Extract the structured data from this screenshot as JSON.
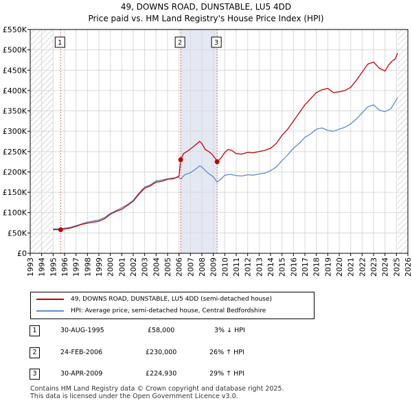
{
  "title": "49, DOWNS ROAD, DUNSTABLE, LU5 4DD",
  "subtitle": "Price paid vs. HM Land Registry's House Price Index (HPI)",
  "colors": {
    "price_line": "#c00000",
    "hpi_line": "#5b8bc9",
    "grid": "#d9d9d9",
    "marker_line": "#e06666",
    "hatch": "#b0b0b0",
    "shade": "#e4e8f3"
  },
  "chart_data": {
    "type": "line",
    "title": "49, DOWNS ROAD, DUNSTABLE, LU5 4DD",
    "subtitle": "Price paid vs. HM Land Registry's House Price Index (HPI)",
    "xlabel": "",
    "ylabel": "",
    "xlim": [
      1993,
      2026
    ],
    "ylim": [
      0,
      550000
    ],
    "grid": true,
    "y_ticks": [
      0,
      50000,
      100000,
      150000,
      200000,
      250000,
      300000,
      350000,
      400000,
      450000,
      500000,
      550000
    ],
    "y_tick_labels": [
      "£0",
      "£50K",
      "£100K",
      "£150K",
      "£200K",
      "£250K",
      "£300K",
      "£350K",
      "£400K",
      "£450K",
      "£500K",
      "£550K"
    ],
    "x_ticks": [
      1993,
      1994,
      1995,
      1996,
      1997,
      1998,
      1999,
      2000,
      2001,
      2002,
      2003,
      2004,
      2005,
      2006,
      2007,
      2008,
      2009,
      2010,
      2011,
      2012,
      2013,
      2014,
      2015,
      2016,
      2017,
      2018,
      2019,
      2020,
      2021,
      2022,
      2023,
      2024,
      2025,
      2026
    ],
    "x_tick_labels": [
      "1993",
      "1994",
      "1995",
      "1996",
      "1997",
      "1998",
      "1999",
      "2000",
      "2001",
      "2002",
      "2003",
      "2004",
      "2005",
      "2006",
      "2007",
      "2008",
      "2009",
      "2010",
      "2011",
      "2012",
      "2013",
      "2014",
      "2015",
      "2016",
      "2017",
      "2018",
      "2019",
      "2020",
      "2021",
      "2022",
      "2023",
      "2024",
      "2025",
      "2026"
    ],
    "hatched_regions": [
      [
        1993,
        1995.0
      ],
      [
        2025.1,
        2026
      ]
    ],
    "shaded_regions": [
      [
        2006.15,
        2009.33
      ]
    ],
    "legend_position": "below",
    "series": [
      {
        "name": "49, DOWNS ROAD, DUNSTABLE, LU5 4DD (semi-detached house)",
        "color": "#c00000",
        "x": [
          1995.0,
          1995.66,
          1996.5,
          1997.0,
          1997.5,
          1998.0,
          1999.0,
          1999.5,
          2000.0,
          2000.5,
          2001.0,
          2001.5,
          2002.0,
          2002.5,
          2003.0,
          2003.5,
          2004.0,
          2004.5,
          2005.0,
          2005.5,
          2006.0,
          2006.15,
          2006.4,
          2006.8,
          2007.3,
          2007.8,
          2008.0,
          2008.3,
          2008.6,
          2008.9,
          2009.2,
          2009.33,
          2009.7,
          2010.0,
          2010.3,
          2010.6,
          2011.0,
          2011.5,
          2012.0,
          2012.5,
          2013.0,
          2013.5,
          2014.0,
          2014.5,
          2015.0,
          2015.5,
          2016.0,
          2016.5,
          2017.0,
          2017.5,
          2018.0,
          2018.5,
          2019.0,
          2019.5,
          2020.0,
          2020.5,
          2021.0,
          2021.5,
          2022.0,
          2022.5,
          2023.0,
          2023.5,
          2024.0,
          2024.3,
          2024.6,
          2024.9,
          2025.1
        ],
        "values": [
          58000,
          58000,
          62000,
          66000,
          71000,
          74000,
          79000,
          85000,
          96000,
          103000,
          108000,
          118000,
          128000,
          145000,
          160000,
          166000,
          175000,
          177000,
          182000,
          183000,
          190000,
          230000,
          245000,
          252000,
          263000,
          275000,
          270000,
          255000,
          250000,
          243000,
          232000,
          224930,
          235000,
          248000,
          255000,
          253000,
          245000,
          244000,
          248000,
          247000,
          250000,
          253000,
          258000,
          270000,
          290000,
          305000,
          325000,
          345000,
          365000,
          380000,
          395000,
          402000,
          405000,
          395000,
          397000,
          400000,
          408000,
          425000,
          445000,
          465000,
          470000,
          455000,
          448000,
          462000,
          472000,
          478000,
          492000
        ]
      },
      {
        "name": "HPI: Average price, semi-detached house, Central Bedfordshire",
        "color": "#5b8bc9",
        "x": [
          1995.0,
          1995.66,
          1996.5,
          1997.0,
          1997.5,
          1998.0,
          1999.0,
          1999.5,
          2000.0,
          2000.5,
          2001.0,
          2001.5,
          2002.0,
          2002.5,
          2003.0,
          2003.5,
          2004.0,
          2004.5,
          2005.0,
          2005.5,
          2006.0,
          2006.15,
          2006.5,
          2007.0,
          2007.5,
          2007.8,
          2008.0,
          2008.5,
          2009.0,
          2009.33,
          2009.7,
          2010.0,
          2010.5,
          2011.0,
          2011.5,
          2012.0,
          2012.5,
          2013.0,
          2013.5,
          2014.0,
          2014.5,
          2015.0,
          2015.5,
          2016.0,
          2016.5,
          2017.0,
          2017.5,
          2018.0,
          2018.5,
          2019.0,
          2019.5,
          2020.0,
          2020.5,
          2021.0,
          2021.5,
          2022.0,
          2022.5,
          2023.0,
          2023.5,
          2024.0,
          2024.5,
          2025.1
        ],
        "values": [
          60000,
          60000,
          64000,
          68000,
          72000,
          77000,
          82000,
          88000,
          98000,
          105000,
          112000,
          120000,
          130000,
          148000,
          163000,
          168000,
          178000,
          180000,
          183000,
          185000,
          187000,
          182000,
          193000,
          198000,
          208000,
          215000,
          212000,
          198000,
          188000,
          175000,
          183000,
          192000,
          194000,
          191000,
          190000,
          193000,
          192000,
          195000,
          197000,
          203000,
          212000,
          228000,
          242000,
          258000,
          270000,
          285000,
          293000,
          305000,
          308000,
          302000,
          300000,
          305000,
          310000,
          318000,
          330000,
          345000,
          360000,
          365000,
          352000,
          348000,
          355000,
          382000
        ]
      }
    ],
    "transactions": [
      {
        "id": "1",
        "x": 1995.66,
        "value": 58000
      },
      {
        "id": "2",
        "x": 2006.15,
        "value": 230000
      },
      {
        "id": "3",
        "x": 2009.33,
        "value": 224930
      }
    ]
  },
  "legend": {
    "items": [
      {
        "label": "49, DOWNS ROAD, DUNSTABLE, LU5 4DD (semi-detached house)",
        "color": "#c00000"
      },
      {
        "label": "HPI: Average price, semi-detached house, Central Bedfordshire",
        "color": "#5b8bc9"
      }
    ]
  },
  "transactions_table": [
    {
      "id": "1",
      "date": "30-AUG-1995",
      "price": "£58,000",
      "hpi": "3% ↓ HPI"
    },
    {
      "id": "2",
      "date": "24-FEB-2006",
      "price": "£230,000",
      "hpi": "26% ↑ HPI"
    },
    {
      "id": "3",
      "date": "30-APR-2009",
      "price": "£224,930",
      "hpi": "29% ↑ HPI"
    }
  ],
  "footer": {
    "line1": "Contains HM Land Registry data © Crown copyright and database right 2025.",
    "line2": "This data is licensed under the Open Government Licence v3.0."
  }
}
